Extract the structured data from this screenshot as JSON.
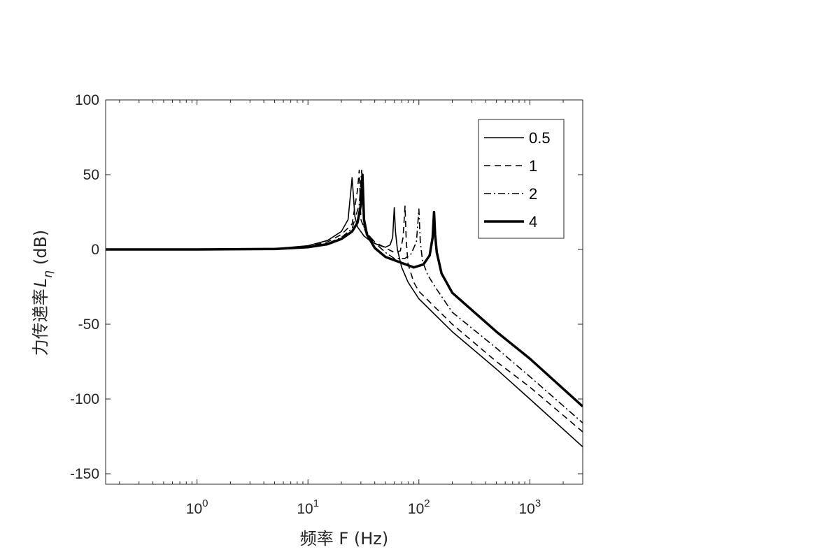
{
  "chart_data": {
    "type": "line",
    "xscale": "log",
    "xlim": [
      0.15,
      3000
    ],
    "ylim": [
      -157,
      100
    ],
    "xlabel": "频率 F (Hz)",
    "ylabel_main": "力传递率",
    "ylabel_symbol": "L",
    "ylabel_subscript": "η",
    "ylabel_unit": "(dB)",
    "x_ticks": [
      {
        "value": 1,
        "base": "10",
        "exp": "0"
      },
      {
        "value": 10,
        "base": "10",
        "exp": "1"
      },
      {
        "value": 100,
        "base": "10",
        "exp": "2"
      },
      {
        "value": 1000,
        "base": "10",
        "exp": "3"
      }
    ],
    "y_ticks": [
      {
        "value": 100,
        "label": "100"
      },
      {
        "value": 50,
        "label": "50"
      },
      {
        "value": 0,
        "label": "0"
      },
      {
        "value": -50,
        "label": "-50"
      },
      {
        "value": -100,
        "label": "-100"
      },
      {
        "value": -150,
        "label": "-150"
      }
    ],
    "legend_position": "top-right",
    "grid": false,
    "series": [
      {
        "name": "0.5",
        "line_style": "solid",
        "line_width": 1.6,
        "points": [
          [
            0.15,
            0
          ],
          [
            1,
            0.02
          ],
          [
            5,
            0.5
          ],
          [
            10,
            2.5
          ],
          [
            15,
            6
          ],
          [
            20,
            12
          ],
          [
            23,
            20
          ],
          [
            25,
            48
          ],
          [
            26.5,
            22
          ],
          [
            28,
            15
          ],
          [
            32,
            9
          ],
          [
            36,
            6
          ],
          [
            40,
            4
          ],
          [
            45,
            2.5
          ],
          [
            50,
            1.5
          ],
          [
            55,
            3
          ],
          [
            58,
            8
          ],
          [
            60,
            28
          ],
          [
            61.5,
            12
          ],
          [
            64,
            0
          ],
          [
            70,
            -12
          ],
          [
            80,
            -22
          ],
          [
            100,
            -33
          ],
          [
            200,
            -55
          ],
          [
            500,
            -80
          ],
          [
            1000,
            -100
          ],
          [
            3000,
            -132
          ]
        ]
      },
      {
        "name": "1",
        "line_style": "dashed",
        "line_width": 1.6,
        "points": [
          [
            0.15,
            0
          ],
          [
            1,
            0.02
          ],
          [
            5,
            0.4
          ],
          [
            10,
            2
          ],
          [
            15,
            5
          ],
          [
            20,
            10
          ],
          [
            25,
            17
          ],
          [
            28,
            40
          ],
          [
            29,
            53
          ],
          [
            30,
            20
          ],
          [
            33,
            12
          ],
          [
            40,
            5
          ],
          [
            50,
            1
          ],
          [
            60,
            -2
          ],
          [
            68,
            -1
          ],
          [
            72,
            8
          ],
          [
            75,
            29
          ],
          [
            77,
            5
          ],
          [
            80,
            -10
          ],
          [
            90,
            -22
          ],
          [
            100,
            -28
          ],
          [
            200,
            -50
          ],
          [
            500,
            -75
          ],
          [
            1000,
            -92
          ],
          [
            3000,
            -122
          ]
        ]
      },
      {
        "name": "2",
        "line_style": "dashdot",
        "line_width": 1.6,
        "points": [
          [
            0.15,
            0
          ],
          [
            1,
            0.02
          ],
          [
            5,
            0.35
          ],
          [
            10,
            1.8
          ],
          [
            15,
            4
          ],
          [
            20,
            8
          ],
          [
            25,
            14
          ],
          [
            29,
            30
          ],
          [
            30.5,
            53
          ],
          [
            32,
            15
          ],
          [
            38,
            6
          ],
          [
            50,
            -2
          ],
          [
            60,
            -6
          ],
          [
            75,
            -6
          ],
          [
            85,
            -3
          ],
          [
            95,
            5
          ],
          [
            100,
            27
          ],
          [
            103,
            5
          ],
          [
            108,
            -8
          ],
          [
            120,
            -17
          ],
          [
            140,
            -25
          ],
          [
            200,
            -42
          ],
          [
            500,
            -66
          ],
          [
            1000,
            -85
          ],
          [
            3000,
            -116
          ]
        ]
      },
      {
        "name": "4",
        "line_style": "solid",
        "line_width": 3.5,
        "points": [
          [
            0.15,
            0
          ],
          [
            1,
            0.02
          ],
          [
            5,
            0.3
          ],
          [
            10,
            1.5
          ],
          [
            15,
            3.5
          ],
          [
            20,
            7
          ],
          [
            25,
            12
          ],
          [
            28,
            18
          ],
          [
            30,
            30
          ],
          [
            31,
            50
          ],
          [
            32,
            20
          ],
          [
            34,
            10
          ],
          [
            40,
            1
          ],
          [
            50,
            -5
          ],
          [
            70,
            -9
          ],
          [
            90,
            -12
          ],
          [
            110,
            -10
          ],
          [
            125,
            -4
          ],
          [
            133,
            8
          ],
          [
            137,
            25
          ],
          [
            140,
            10
          ],
          [
            145,
            -2
          ],
          [
            160,
            -16
          ],
          [
            200,
            -29
          ],
          [
            500,
            -55
          ],
          [
            1000,
            -73
          ],
          [
            3000,
            -105
          ]
        ]
      }
    ]
  }
}
